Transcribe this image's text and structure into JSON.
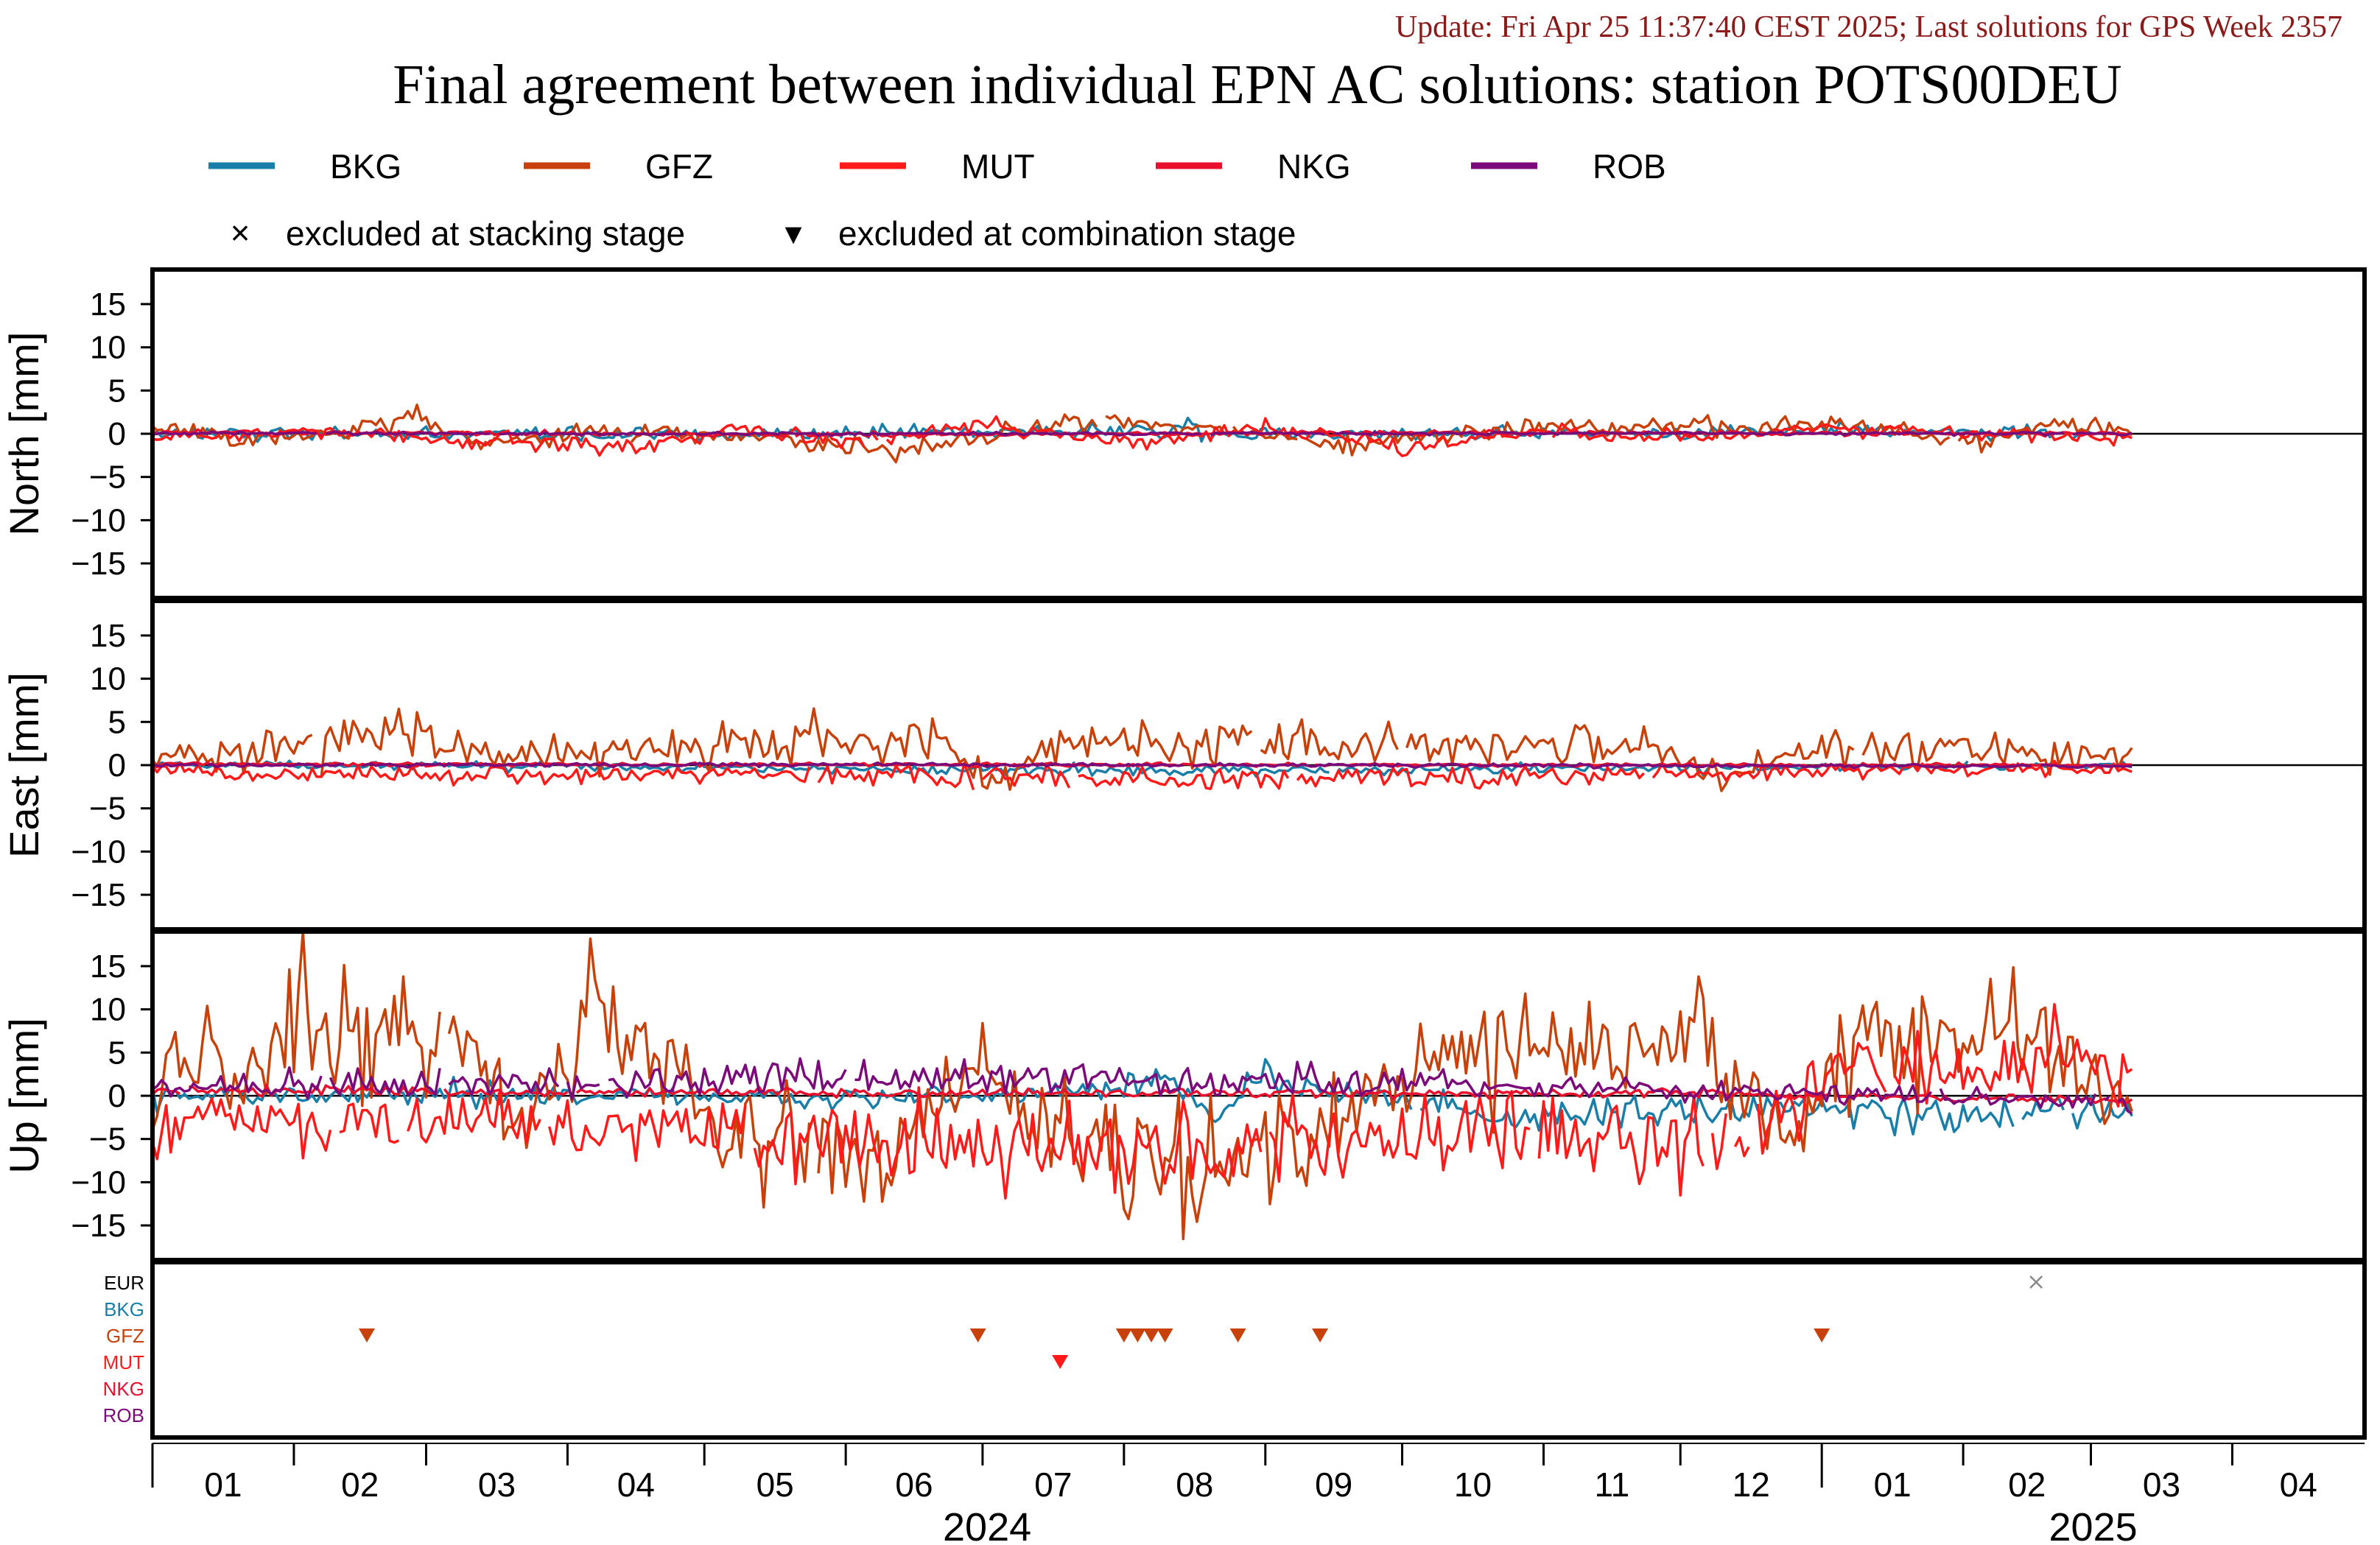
{
  "header": {
    "update": "Update: Fri Apr 25 11:37:40 CEST 2025; Last solutions for GPS Week 2357",
    "title": "Final agreement between individual EPN AC solutions: station POTS00DEU"
  },
  "legend": {
    "entries": [
      {
        "label": "BKG",
        "color": "#1a7fa8"
      },
      {
        "label": "GFZ",
        "color": "#c8400a"
      },
      {
        "label": "MUT",
        "color": "#ff1a1a"
      },
      {
        "label": "NKG",
        "color": "#e8112d"
      },
      {
        "label": "ROB",
        "color": "#7b0a7b"
      }
    ],
    "markers": [
      {
        "symbol": "×",
        "label": "excluded at stacking stage"
      },
      {
        "symbol": "▾",
        "label": "excluded at combination stage"
      }
    ]
  },
  "chart_data": {
    "type": "line",
    "x_axis": {
      "range": [
        "2024-01-01",
        "2025-04-30"
      ],
      "months": [
        {
          "label": "01",
          "start": "2024-01-01"
        },
        {
          "label": "02",
          "start": "2024-02-01"
        },
        {
          "label": "03",
          "start": "2024-03-01"
        },
        {
          "label": "04",
          "start": "2024-04-01"
        },
        {
          "label": "05",
          "start": "2024-05-01"
        },
        {
          "label": "06",
          "start": "2024-06-01"
        },
        {
          "label": "07",
          "start": "2024-07-01"
        },
        {
          "label": "08",
          "start": "2024-08-01"
        },
        {
          "label": "09",
          "start": "2024-09-01"
        },
        {
          "label": "10",
          "start": "2024-10-01"
        },
        {
          "label": "11",
          "start": "2024-11-01"
        },
        {
          "label": "12",
          "start": "2024-12-01"
        },
        {
          "label": "01",
          "start": "2025-01-01"
        },
        {
          "label": "02",
          "start": "2025-02-01"
        },
        {
          "label": "03",
          "start": "2025-03-01"
        },
        {
          "label": "04",
          "start": "2025-04-01"
        }
      ],
      "years": [
        {
          "label": "2024",
          "start": "2024-01-01",
          "end": "2025-01-01"
        },
        {
          "label": "2025",
          "start": "2025-01-01",
          "end": "2025-04-30"
        }
      ]
    },
    "panels": [
      {
        "ylabel": "North [mm]",
        "ylim": [
          -19,
          19
        ],
        "yticks": [
          15,
          10,
          5,
          0,
          -5,
          -10,
          -15
        ],
        "series": [
          {
            "name": "BKG",
            "values": [
              {
                "x": "2024-01-01",
                "y": 0.2
              },
              {
                "x": "2024-04-01",
                "y": -0.2
              },
              {
                "x": "2024-08-10",
                "y": 0.6
              },
              {
                "x": "2024-08-15",
                "y": 2.2
              },
              {
                "x": "2024-08-18",
                "y": -0.3
              },
              {
                "x": "2025-01-01",
                "y": 0.5
              },
              {
                "x": "2025-03-01",
                "y": 0.1
              }
            ]
          },
          {
            "name": "GFZ",
            "values": [
              {
                "x": "2024-01-01",
                "y": 1.6
              },
              {
                "x": "2024-01-20",
                "y": -1.5
              },
              {
                "x": "2024-02-10",
                "y": 0.2
              },
              {
                "x": "2024-02-26",
                "y": 2.8
              },
              {
                "x": "2024-03-15",
                "y": -1.7
              },
              {
                "x": "2024-04-10",
                "y": 1.0
              },
              {
                "x": "2024-05-20",
                "y": -1.4
              },
              {
                "x": "2024-06-14",
                "y": -2.8
              },
              {
                "x": "2024-07-20",
                "y": 2.0
              },
              {
                "x": "2024-08-20",
                "y": 1.2
              },
              {
                "x": "2024-09-20",
                "y": -2.0
              },
              {
                "x": "2024-10-20",
                "y": 1.0
              },
              {
                "x": "2024-12-10",
                "y": 1.6
              },
              {
                "x": "2025-01-05",
                "y": 1.8
              },
              {
                "x": "2025-02-05",
                "y": -1.6
              },
              {
                "x": "2025-02-20",
                "y": 1.8
              },
              {
                "x": "2025-03-10",
                "y": 0.6
              }
            ]
          },
          {
            "name": "MUT",
            "values": [
              {
                "x": "2024-01-01",
                "y": -0.5
              },
              {
                "x": "2024-02-01",
                "y": 0.5
              },
              {
                "x": "2024-03-01",
                "y": -1.0
              },
              {
                "x": "2024-04-15",
                "y": -2.3
              },
              {
                "x": "2024-05-10",
                "y": 1.0
              },
              {
                "x": "2024-06-01",
                "y": -1.5
              },
              {
                "x": "2024-07-01",
                "y": 1.5
              },
              {
                "x": "2024-08-01",
                "y": -1.5
              },
              {
                "x": "2024-09-01",
                "y": 1.0
              },
              {
                "x": "2024-10-01",
                "y": -2.3
              },
              {
                "x": "2024-11-01",
                "y": 0.5
              },
              {
                "x": "2024-12-01",
                "y": -1.0
              },
              {
                "x": "2025-01-01",
                "y": 1.0
              },
              {
                "x": "2025-03-10",
                "y": -1.0
              }
            ]
          },
          {
            "name": "NKG",
            "values": [
              {
                "x": "2024-01-01",
                "y": 0.3
              },
              {
                "x": "2024-06-01",
                "y": -0.2
              },
              {
                "x": "2024-10-01",
                "y": 0.2
              },
              {
                "x": "2025-03-10",
                "y": 0.0
              }
            ]
          },
          {
            "name": "ROB",
            "values": [
              {
                "x": "2024-01-01",
                "y": 0.1
              },
              {
                "x": "2024-06-01",
                "y": 0.0
              },
              {
                "x": "2024-12-01",
                "y": 0.1
              },
              {
                "x": "2025-03-10",
                "y": 0.0
              }
            ]
          }
        ]
      },
      {
        "ylabel": "East [mm]",
        "ylim": [
          -19,
          19
        ],
        "yticks": [
          15,
          10,
          5,
          0,
          -5,
          -10,
          -15
        ],
        "series": [
          {
            "name": "BKG",
            "values": [
              {
                "x": "2024-01-01",
                "y": 0.1
              },
              {
                "x": "2024-08-10",
                "y": -1.0
              },
              {
                "x": "2024-10-01",
                "y": -0.8
              },
              {
                "x": "2025-03-10",
                "y": 0.0
              }
            ]
          },
          {
            "name": "GFZ",
            "values": [
              {
                "x": "2024-01-01",
                "y": 0.6
              },
              {
                "x": "2024-01-20",
                "y": 2.4
              },
              {
                "x": "2024-02-10",
                "y": 4.8
              },
              {
                "x": "2024-02-26",
                "y": 6.0
              },
              {
                "x": "2024-03-20",
                "y": 2.5
              },
              {
                "x": "2024-04-15",
                "y": 2.4
              },
              {
                "x": "2024-06-20",
                "y": 5.6
              },
              {
                "x": "2024-07-01",
                "y": -2.8
              },
              {
                "x": "2024-07-20",
                "y": 3.8
              },
              {
                "x": "2024-09-05",
                "y": 4.6
              },
              {
                "x": "2024-09-20",
                "y": 4.0
              },
              {
                "x": "2024-11-20",
                "y": 4.2
              },
              {
                "x": "2024-12-10",
                "y": -2.8
              },
              {
                "x": "2025-01-01",
                "y": 4.0
              },
              {
                "x": "2025-02-01",
                "y": 2.5
              },
              {
                "x": "2025-03-10",
                "y": 0.8
              }
            ]
          },
          {
            "name": "MUT",
            "values": [
              {
                "x": "2024-01-01",
                "y": -0.3
              },
              {
                "x": "2024-01-10",
                "y": -2.0
              },
              {
                "x": "2024-03-01",
                "y": -1.5
              },
              {
                "x": "2024-05-01",
                "y": -1.5
              },
              {
                "x": "2024-07-01",
                "y": -2.5
              },
              {
                "x": "2024-09-01",
                "y": -2.6
              },
              {
                "x": "2024-11-01",
                "y": -2.0
              },
              {
                "x": "2025-01-01",
                "y": -1.0
              },
              {
                "x": "2025-03-10",
                "y": -0.5
              }
            ]
          },
          {
            "name": "NKG",
            "values": [
              {
                "x": "2024-01-01",
                "y": 0.2
              },
              {
                "x": "2024-06-01",
                "y": 0.1
              },
              {
                "x": "2025-03-10",
                "y": 0.0
              }
            ]
          },
          {
            "name": "ROB",
            "values": [
              {
                "x": "2024-01-01",
                "y": 0.0
              },
              {
                "x": "2024-06-01",
                "y": 0.1
              },
              {
                "x": "2025-03-10",
                "y": -0.2
              }
            ]
          }
        ]
      },
      {
        "ylabel": "Up [mm]",
        "ylim": [
          -19,
          19
        ],
        "yticks": [
          15,
          10,
          5,
          0,
          -5,
          -10,
          -15
        ],
        "series": [
          {
            "name": "BKG",
            "values": [
              {
                "x": "2024-01-01",
                "y": 0.5
              },
              {
                "x": "2024-07-01",
                "y": -0.5
              },
              {
                "x": "2024-08-10",
                "y": 3.0
              },
              {
                "x": "2024-08-20",
                "y": -4.0
              },
              {
                "x": "2024-09-01",
                "y": 3.5
              },
              {
                "x": "2024-10-20",
                "y": -4.0
              },
              {
                "x": "2025-01-01",
                "y": -2.0
              },
              {
                "x": "2025-01-20",
                "y": -4.0
              },
              {
                "x": "2025-03-10",
                "y": -2.5
              }
            ]
          },
          {
            "name": "GFZ",
            "values": [
              {
                "x": "2024-01-01",
                "y": -2.0
              },
              {
                "x": "2024-01-08",
                "y": 10.5
              },
              {
                "x": "2024-01-20",
                "y": 2.0
              },
              {
                "x": "2024-02-03",
                "y": 17.5
              },
              {
                "x": "2024-02-14",
                "y": 10.0
              },
              {
                "x": "2024-02-25",
                "y": 14.5
              },
              {
                "x": "2024-03-10",
                "y": 10.0
              },
              {
                "x": "2024-03-20",
                "y": -7.0
              },
              {
                "x": "2024-04-06",
                "y": 14.0
              },
              {
                "x": "2024-04-20",
                "y": 10.5
              },
              {
                "x": "2024-05-05",
                "y": -6.0
              },
              {
                "x": "2024-06-10",
                "y": -11.0
              },
              {
                "x": "2024-06-30",
                "y": 6.5
              },
              {
                "x": "2024-07-20",
                "y": -10.5
              },
              {
                "x": "2024-08-15",
                "y": -11.5
              },
              {
                "x": "2024-09-10",
                "y": -10.5
              },
              {
                "x": "2024-10-10",
                "y": 7.0
              },
              {
                "x": "2024-11-10",
                "y": 9.0
              },
              {
                "x": "2024-12-05",
                "y": 11.0
              },
              {
                "x": "2024-12-25",
                "y": -8.0
              },
              {
                "x": "2025-01-08",
                "y": 10.5
              },
              {
                "x": "2025-02-05",
                "y": 11.0
              },
              {
                "x": "2025-02-20",
                "y": 7.0
              },
              {
                "x": "2025-03-10",
                "y": 1.0
              }
            ]
          },
          {
            "name": "MUT",
            "values": [
              {
                "x": "2024-01-01",
                "y": -7.0
              },
              {
                "x": "2024-01-15",
                "y": -3.0
              },
              {
                "x": "2024-02-15",
                "y": -6.0
              },
              {
                "x": "2024-03-15",
                "y": -4.0
              },
              {
                "x": "2024-04-15",
                "y": -5.0
              },
              {
                "x": "2024-05-15",
                "y": -6.5
              },
              {
                "x": "2024-06-15",
                "y": -9.0
              },
              {
                "x": "2024-07-15",
                "y": -10.0
              },
              {
                "x": "2024-08-15",
                "y": -9.5
              },
              {
                "x": "2024-09-15",
                "y": -8.0
              },
              {
                "x": "2024-10-15",
                "y": -7.0
              },
              {
                "x": "2024-11-15",
                "y": -8.5
              },
              {
                "x": "2024-12-15",
                "y": -10.0
              },
              {
                "x": "2025-01-05",
                "y": 6.0
              },
              {
                "x": "2025-02-10",
                "y": 3.0
              },
              {
                "x": "2025-02-20",
                "y": 10.0
              },
              {
                "x": "2025-03-10",
                "y": 3.0
              }
            ]
          },
          {
            "name": "NKG",
            "values": [
              {
                "x": "2024-01-01",
                "y": 1.0
              },
              {
                "x": "2024-06-01",
                "y": 0.5
              },
              {
                "x": "2024-12-01",
                "y": 0.5
              },
              {
                "x": "2025-03-10",
                "y": -1.0
              }
            ]
          },
          {
            "name": "ROB",
            "values": [
              {
                "x": "2024-01-01",
                "y": 1.5
              },
              {
                "x": "2024-04-15",
                "y": 2.5
              },
              {
                "x": "2024-06-05",
                "y": 4.0
              },
              {
                "x": "2024-10-10",
                "y": 2.0
              },
              {
                "x": "2025-03-10",
                "y": -1.0
              }
            ]
          }
        ]
      }
    ],
    "exclusion_panel": {
      "rows": [
        {
          "label": "EUR",
          "color": "#000000"
        },
        {
          "label": "BKG",
          "color": "#1a7fa8"
        },
        {
          "label": "GFZ",
          "color": "#c8400a"
        },
        {
          "label": "MUT",
          "color": "#ff1a1a"
        },
        {
          "label": "NKG",
          "color": "#e8112d"
        },
        {
          "label": "ROB",
          "color": "#7b0a7b"
        }
      ],
      "stacking_exclusions": [
        {
          "row": "EUR",
          "date": "2025-02-17"
        }
      ],
      "combination_exclusions": [
        {
          "row": "GFZ",
          "date": "2024-02-17"
        },
        {
          "row": "GFZ",
          "date": "2024-06-30"
        },
        {
          "row": "MUT",
          "date": "2024-07-18"
        },
        {
          "row": "GFZ",
          "date": "2024-08-01"
        },
        {
          "row": "GFZ",
          "date": "2024-08-04"
        },
        {
          "row": "GFZ",
          "date": "2024-08-07"
        },
        {
          "row": "GFZ",
          "date": "2024-08-10"
        },
        {
          "row": "GFZ",
          "date": "2024-08-26"
        },
        {
          "row": "GFZ",
          "date": "2024-09-13"
        },
        {
          "row": "GFZ",
          "date": "2025-01-01"
        }
      ]
    }
  }
}
